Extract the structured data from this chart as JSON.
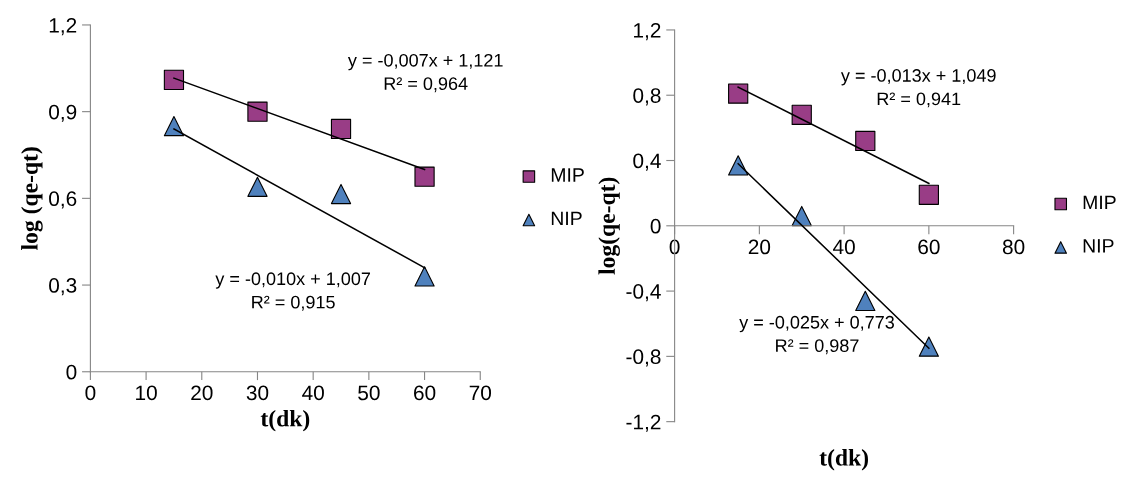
{
  "chart_data": [
    {
      "type": "scatter",
      "xlabel": "t(dk)",
      "ylabel": "log (qe-qt)",
      "x": [
        15,
        30,
        45,
        60
      ],
      "xlim": [
        0,
        70
      ],
      "xticks": [
        0,
        10,
        20,
        30,
        40,
        50,
        60,
        70
      ],
      "ylim": [
        0,
        1.2
      ],
      "yticks": [
        {
          "value": 0,
          "label": "0"
        },
        {
          "value": 0.3,
          "label": "0,3"
        },
        {
          "value": 0.6,
          "label": "0,6"
        },
        {
          "value": 0.9,
          "label": "0,9"
        },
        {
          "value": 1.2,
          "label": "1,2"
        }
      ],
      "grid": false,
      "legend": "right",
      "series": [
        {
          "name": "MIP",
          "color": "#993d86",
          "marker": "square",
          "values": [
            1.01,
            0.9,
            0.84,
            0.675
          ]
        },
        {
          "name": "NIP",
          "color": "#4f81bd",
          "marker": "triangle",
          "values": [
            0.85,
            0.64,
            0.615,
            0.33
          ]
        },
        {
          "type": "line",
          "color": "#000000",
          "values": [
            1.016,
            null,
            null,
            0.7
          ]
        },
        {
          "type": "line",
          "color": "#000000",
          "values": [
            0.84,
            null,
            null,
            0.36
          ]
        }
      ],
      "annotations": [
        "y = -0,007x + 1,121\nR² = 0,964",
        "y = -0,010x + 1,007\nR² = 0,915"
      ]
    },
    {
      "type": "scatter",
      "xlabel": "t(dk)",
      "ylabel": "log(qe-qt)",
      "x": [
        15,
        30,
        45,
        60
      ],
      "xlim": [
        0,
        80
      ],
      "xticks": [
        0,
        20,
        40,
        60,
        80
      ],
      "ylim": [
        -1.2,
        1.2
      ],
      "yticks": [
        {
          "value": -1.2,
          "label": "-1,2"
        },
        {
          "value": -0.8,
          "label": "-0,8"
        },
        {
          "value": -0.4,
          "label": "-0,4"
        },
        {
          "value": 0,
          "label": "0"
        },
        {
          "value": 0.4,
          "label": "0,4"
        },
        {
          "value": 0.8,
          "label": "0,8"
        },
        {
          "value": 1.2,
          "label": "1,2"
        }
      ],
      "grid": false,
      "legend": "right",
      "series": [
        {
          "name": "MIP",
          "color": "#993d86",
          "marker": "square",
          "values": [
            0.81,
            0.68,
            0.52,
            0.19
          ]
        },
        {
          "name": "NIP",
          "color": "#4f81bd",
          "marker": "triangle",
          "values": [
            0.37,
            0.06,
            -0.46,
            -0.74
          ]
        },
        {
          "type": "line",
          "color": "#000000",
          "values": [
            0.85,
            null,
            null,
            0.26
          ]
        },
        {
          "type": "line",
          "color": "#000000",
          "values": [
            0.38,
            null,
            null,
            -0.75
          ]
        }
      ],
      "annotations": [
        "y = -0,013x + 1,049\nR² = 0,941",
        "y = -0,025x + 0,773\nR² = 0,987"
      ]
    }
  ]
}
